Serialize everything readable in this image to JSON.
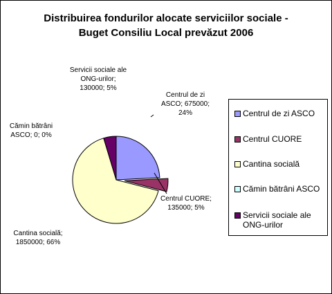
{
  "chart_data": {
    "type": "pie",
    "title_line1": "Distribuirea fondurilor alocate serviciilor sociale -",
    "title_line2": "Buget Consiliu Local prevăzut 2006",
    "legend_position": "right",
    "slices": [
      {
        "name": "Centrul de zi ASCO",
        "value": 675000,
        "percent": 24,
        "color": "#9999FF",
        "label_lines": [
          "Centrul de zi",
          "ASCO; 675000;",
          "24%"
        ]
      },
      {
        "name": "Centrul CUORE",
        "value": 135000,
        "percent": 5,
        "color": "#993366",
        "label_lines": [
          "Centrul CUORE;",
          "135000; 5%"
        ]
      },
      {
        "name": "Cantina socială",
        "value": 1850000,
        "percent": 66,
        "color": "#FFFFCC",
        "label_lines": [
          "Cantina socială;",
          "1850000; 66%"
        ]
      },
      {
        "name": "Cămin bătrâni ASCO",
        "value": 0,
        "percent": 0,
        "color": "#CCFFFF",
        "label_lines": [
          "Cămin bătrâni",
          "ASCO; 0; 0%"
        ]
      },
      {
        "name": "Servicii sociale ale ONG-urilor",
        "value": 130000,
        "percent": 5,
        "color": "#660066",
        "label_lines": [
          "Servicii sociale ale",
          "ONG-urilor;",
          "130000; 5%"
        ]
      }
    ],
    "legend": [
      {
        "lines": [
          "Centrul de zi ASCO"
        ],
        "color": "#9999FF"
      },
      {
        "lines": [
          "Centrul CUORE"
        ],
        "color": "#993366"
      },
      {
        "lines": [
          "Cantina socială"
        ],
        "color": "#FFFFCC"
      },
      {
        "lines": [
          "Cămin bătrâni ASCO"
        ],
        "color": "#CCFFFF"
      },
      {
        "lines": [
          "Servicii sociale ale",
          "ONG-urilor"
        ],
        "color": "#660066"
      }
    ]
  }
}
